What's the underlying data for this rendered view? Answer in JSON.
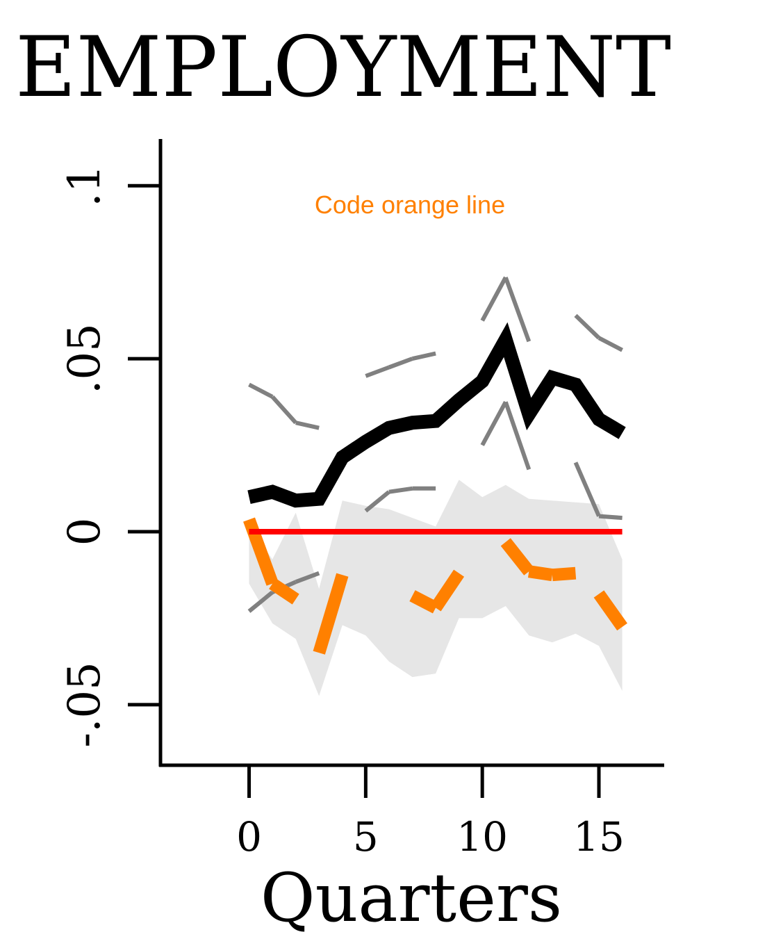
{
  "chart_data": {
    "type": "line",
    "title": "EMPLOYMENT",
    "xlabel": "Quarters",
    "ylabel": "",
    "annotation": "Code orange line",
    "xlim": [
      -3.8,
      17.8
    ],
    "ylim": [
      -0.0675,
      0.1135
    ],
    "xticks": [
      0,
      5,
      10,
      15
    ],
    "xtick_labels": [
      "0",
      "5",
      "10",
      "15"
    ],
    "yticks": [
      -0.05,
      0,
      0.05,
      0.1
    ],
    "ytick_labels": [
      "-.05",
      "0",
      ".05",
      ".1"
    ],
    "grid": false,
    "x": [
      0,
      1,
      2,
      3,
      4,
      5,
      6,
      7,
      8,
      9,
      10,
      11,
      12,
      13,
      14,
      15,
      16
    ],
    "series": [
      {
        "role": "point-estimate",
        "color": "#000000",
        "values": [
          0.01,
          0.0115,
          0.009,
          0.0095,
          0.0215,
          0.026,
          0.03,
          0.0315,
          0.032,
          0.038,
          0.0435,
          0.0555,
          0.034,
          0.0445,
          0.0425,
          0.0325,
          0.0285
        ]
      },
      {
        "role": "upper-bound",
        "color": "#808080",
        "values": [
          0.0425,
          0.039,
          0.0315,
          0.03,
          0.04,
          0.045,
          0.0475,
          0.05,
          0.0515,
          0.057,
          0.061,
          0.0735,
          0.055,
          0.068,
          0.0625,
          0.056,
          0.0525
        ]
      },
      {
        "role": "lower-bound",
        "color": "#808080",
        "values": [
          -0.023,
          -0.0175,
          -0.0145,
          -0.012,
          -0.002,
          0.006,
          0.0115,
          0.0125,
          0.0125,
          0.0185,
          0.025,
          0.0375,
          0.018,
          0.021,
          0.02,
          0.0045,
          0.004
        ]
      },
      {
        "role": "comparison-estimate",
        "color": "#ff8000",
        "values": [
          0.0035,
          -0.015,
          -0.0195,
          -0.035,
          -0.0125,
          -0.011,
          -0.0185,
          -0.0185,
          -0.022,
          -0.012,
          -0.003,
          -0.003,
          -0.0115,
          -0.0125,
          -0.012,
          -0.018,
          -0.0275
        ]
      },
      {
        "role": "reference-line",
        "color": "#ff0000",
        "values": [
          0,
          0,
          0,
          0,
          0,
          0,
          0,
          0,
          0,
          0,
          0,
          0,
          0,
          0,
          0,
          0,
          0
        ]
      }
    ],
    "band": {
      "color": "#e6e6e6",
      "upper": [
        0.002,
        -0.008,
        0.0055,
        -0.0165,
        0.009,
        0.0075,
        0.0065,
        0.004,
        0.0015,
        0.015,
        0.01,
        0.0135,
        0.0095,
        0.009,
        0.0085,
        0.008,
        -0.008
      ],
      "lower": [
        -0.015,
        -0.0265,
        -0.031,
        -0.0475,
        -0.027,
        -0.03,
        -0.0375,
        -0.042,
        -0.041,
        -0.025,
        -0.025,
        -0.0215,
        -0.03,
        -0.032,
        -0.0295,
        -0.033,
        -0.046
      ]
    }
  }
}
